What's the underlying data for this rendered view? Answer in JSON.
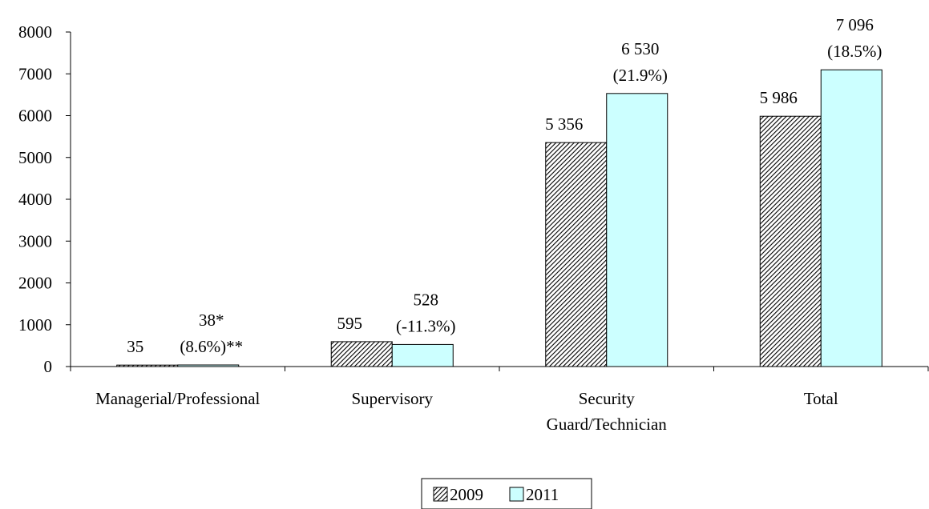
{
  "chart_data": {
    "type": "bar",
    "categories": [
      [
        "Managerial/Professional"
      ],
      [
        "Supervisory"
      ],
      [
        "Security",
        "Guard/Technician"
      ],
      [
        "Total"
      ]
    ],
    "series": [
      {
        "name": "2009",
        "values": [
          35,
          595,
          5356,
          5986
        ],
        "labels": [
          [
            "35"
          ],
          [
            "595"
          ],
          [
            "5 356"
          ],
          [
            "5 986"
          ]
        ],
        "pattern": "hatch",
        "color": "#000000"
      },
      {
        "name": "2011",
        "values": [
          38,
          528,
          6530,
          7096
        ],
        "labels": [
          [
            "38*",
            "(8.6%)**"
          ],
          [
            "528",
            "(-11.3%)"
          ],
          [
            "6 530",
            "(21.9%)"
          ],
          [
            "7 096",
            "(18.5%)"
          ]
        ],
        "pattern": "solid",
        "color": "#ccffff"
      }
    ],
    "yticks": [
      "0",
      "1000",
      "2000",
      "3000",
      "4000",
      "5000",
      "6000",
      "7000",
      "8000"
    ],
    "ylim": [
      0,
      8000
    ],
    "grid": false,
    "legend_position": "bottom-center"
  }
}
